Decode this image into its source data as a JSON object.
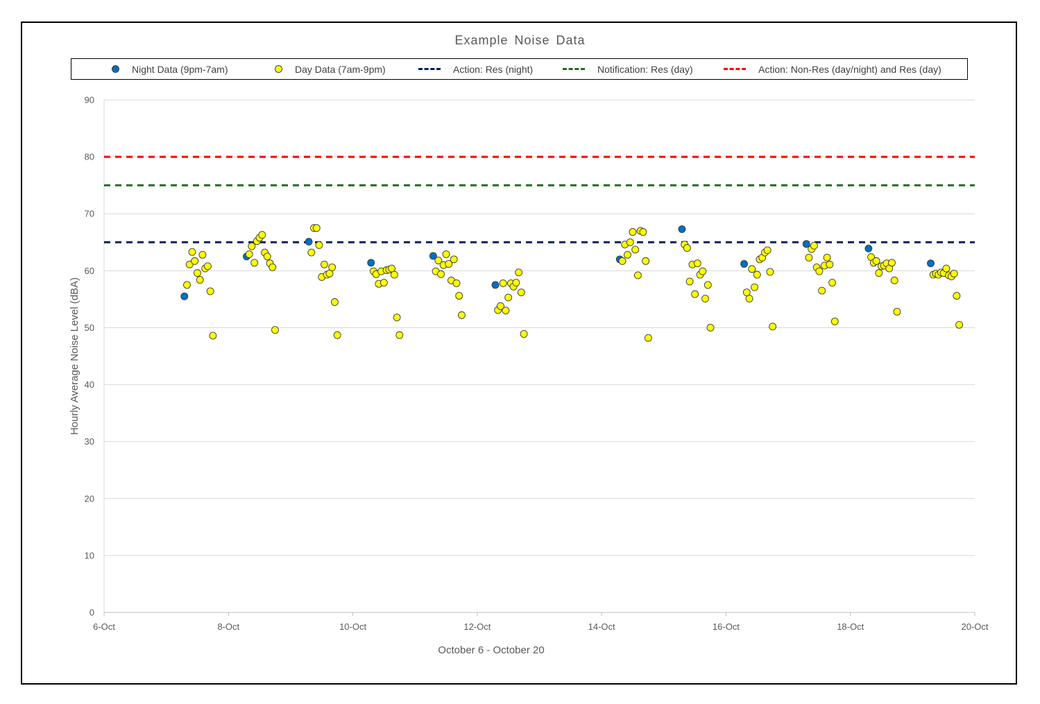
{
  "chart_data": {
    "type": "scatter",
    "title": "Example Noise Data",
    "xlabel": "October 6 - October 20",
    "ylabel": "Hourly Average Noise Level (dBA)",
    "xlim": [
      "6-Oct",
      "20-Oct"
    ],
    "ylim": [
      0,
      90
    ],
    "x_ticks": [
      "6-Oct",
      "8-Oct",
      "10-Oct",
      "12-Oct",
      "14-Oct",
      "16-Oct",
      "18-Oct",
      "20-Oct"
    ],
    "y_ticks": [
      0,
      10,
      20,
      30,
      40,
      50,
      60,
      70,
      80,
      90
    ],
    "grid": "horizontal",
    "legend_position": "top",
    "series": [
      {
        "name": "Night Data (9pm-7am)",
        "kind": "points",
        "color": "#0070C0",
        "points": [
          [
            "7-Oct 7:00",
            55.5
          ],
          [
            "8-Oct 7:00",
            62.5
          ],
          [
            "9-Oct 7:00",
            65.1
          ],
          [
            "10-Oct 7:00",
            61.4
          ],
          [
            "11-Oct 7:00",
            62.6
          ],
          [
            "12-Oct 7:00",
            57.5
          ],
          [
            "14-Oct 7:00",
            62.0
          ],
          [
            "15-Oct 7:00",
            67.3
          ],
          [
            "16-Oct 7:00",
            61.2
          ],
          [
            "17-Oct 7:00",
            64.7
          ],
          [
            "18-Oct 7:00",
            63.9
          ],
          [
            "19-Oct 7:00",
            61.3
          ]
        ]
      },
      {
        "name": "Day Data (7am-9pm)",
        "kind": "points",
        "color": "#FFFF00",
        "points": [
          [
            "7-Oct 8:00",
            57.5
          ],
          [
            "7-Oct 9:00",
            61.1
          ],
          [
            "7-Oct 10:00",
            63.3
          ],
          [
            "7-Oct 11:00",
            61.7
          ],
          [
            "7-Oct 12:00",
            59.6
          ],
          [
            "7-Oct 13:00",
            58.4
          ],
          [
            "7-Oct 14:00",
            62.8
          ],
          [
            "7-Oct 15:00",
            60.4
          ],
          [
            "7-Oct 16:00",
            60.8
          ],
          [
            "7-Oct 17:00",
            56.4
          ],
          [
            "7-Oct 18:00",
            48.6
          ],
          [
            "8-Oct 8:00",
            62.9
          ],
          [
            "8-Oct 9:00",
            64.3
          ],
          [
            "8-Oct 10:00",
            61.4
          ],
          [
            "8-Oct 11:00",
            65.2
          ],
          [
            "8-Oct 12:00",
            65.8
          ],
          [
            "8-Oct 13:00",
            66.3
          ],
          [
            "8-Oct 14:00",
            63.2
          ],
          [
            "8-Oct 15:00",
            62.5
          ],
          [
            "8-Oct 16:00",
            61.3
          ],
          [
            "8-Oct 17:00",
            60.6
          ],
          [
            "8-Oct 18:00",
            49.6
          ],
          [
            "9-Oct 8:00",
            63.2
          ],
          [
            "9-Oct 9:00",
            67.5
          ],
          [
            "9-Oct 10:00",
            67.5
          ],
          [
            "9-Oct 11:00",
            64.5
          ],
          [
            "9-Oct 12:00",
            58.9
          ],
          [
            "9-Oct 13:00",
            61.1
          ],
          [
            "9-Oct 14:00",
            59.3
          ],
          [
            "9-Oct 15:00",
            59.5
          ],
          [
            "9-Oct 16:00",
            60.6
          ],
          [
            "9-Oct 17:00",
            54.5
          ],
          [
            "9-Oct 18:00",
            48.7
          ],
          [
            "10-Oct 8:00",
            59.9
          ],
          [
            "10-Oct 9:00",
            59.4
          ],
          [
            "10-Oct 10:00",
            57.7
          ],
          [
            "10-Oct 11:00",
            59.9
          ],
          [
            "10-Oct 12:00",
            57.9
          ],
          [
            "10-Oct 13:00",
            60.1
          ],
          [
            "10-Oct 14:00",
            60.2
          ],
          [
            "10-Oct 15:00",
            60.4
          ],
          [
            "10-Oct 16:00",
            59.3
          ],
          [
            "10-Oct 17:00",
            51.8
          ],
          [
            "10-Oct 18:00",
            48.7
          ],
          [
            "11-Oct 8:00",
            59.9
          ],
          [
            "11-Oct 9:00",
            61.8
          ],
          [
            "11-Oct 10:00",
            59.4
          ],
          [
            "11-Oct 11:00",
            61.0
          ],
          [
            "11-Oct 12:00",
            62.9
          ],
          [
            "11-Oct 13:00",
            61.2
          ],
          [
            "11-Oct 14:00",
            58.3
          ],
          [
            "11-Oct 15:00",
            62.0
          ],
          [
            "11-Oct 16:00",
            57.8
          ],
          [
            "11-Oct 17:00",
            55.6
          ],
          [
            "11-Oct 18:00",
            52.2
          ],
          [
            "12-Oct 8:00",
            53.1
          ],
          [
            "12-Oct 9:00",
            53.8
          ],
          [
            "12-Oct 10:00",
            57.8
          ],
          [
            "12-Oct 11:00",
            53.0
          ],
          [
            "12-Oct 12:00",
            55.3
          ],
          [
            "12-Oct 13:00",
            57.8
          ],
          [
            "12-Oct 14:00",
            57.2
          ],
          [
            "12-Oct 15:00",
            57.9
          ],
          [
            "12-Oct 16:00",
            59.7
          ],
          [
            "12-Oct 17:00",
            56.2
          ],
          [
            "12-Oct 18:00",
            48.9
          ],
          [
            "14-Oct 8:00",
            61.7
          ],
          [
            "14-Oct 9:00",
            64.6
          ],
          [
            "14-Oct 10:00",
            62.8
          ],
          [
            "14-Oct 11:00",
            65.0
          ],
          [
            "14-Oct 12:00",
            66.8
          ],
          [
            "14-Oct 13:00",
            63.7
          ],
          [
            "14-Oct 14:00",
            59.2
          ],
          [
            "14-Oct 15:00",
            67.0
          ],
          [
            "14-Oct 16:00",
            66.8
          ],
          [
            "14-Oct 17:00",
            61.7
          ],
          [
            "14-Oct 18:00",
            48.2
          ],
          [
            "15-Oct 8:00",
            64.6
          ],
          [
            "15-Oct 9:00",
            64.0
          ],
          [
            "15-Oct 10:00",
            58.1
          ],
          [
            "15-Oct 11:00",
            61.1
          ],
          [
            "15-Oct 12:00",
            55.9
          ],
          [
            "15-Oct 13:00",
            61.3
          ],
          [
            "15-Oct 14:00",
            59.3
          ],
          [
            "15-Oct 15:00",
            59.9
          ],
          [
            "15-Oct 16:00",
            55.1
          ],
          [
            "15-Oct 17:00",
            57.5
          ],
          [
            "15-Oct 18:00",
            50.0
          ],
          [
            "16-Oct 8:00",
            56.2
          ],
          [
            "16-Oct 9:00",
            55.1
          ],
          [
            "16-Oct 10:00",
            60.3
          ],
          [
            "16-Oct 11:00",
            57.1
          ],
          [
            "16-Oct 12:00",
            59.3
          ],
          [
            "16-Oct 13:00",
            62.0
          ],
          [
            "16-Oct 14:00",
            62.3
          ],
          [
            "16-Oct 15:00",
            63.2
          ],
          [
            "16-Oct 16:00",
            63.6
          ],
          [
            "16-Oct 17:00",
            59.8
          ],
          [
            "16-Oct 18:00",
            50.2
          ],
          [
            "17-Oct 8:00",
            62.3
          ],
          [
            "17-Oct 9:00",
            63.8
          ],
          [
            "17-Oct 10:00",
            64.4
          ],
          [
            "17-Oct 11:00",
            60.6
          ],
          [
            "17-Oct 12:00",
            59.9
          ],
          [
            "17-Oct 13:00",
            56.5
          ],
          [
            "17-Oct 14:00",
            60.9
          ],
          [
            "17-Oct 15:00",
            62.3
          ],
          [
            "17-Oct 16:00",
            61.1
          ],
          [
            "17-Oct 17:00",
            57.9
          ],
          [
            "17-Oct 18:00",
            51.1
          ],
          [
            "18-Oct 8:00",
            62.4
          ],
          [
            "18-Oct 9:00",
            61.4
          ],
          [
            "18-Oct 10:00",
            61.7
          ],
          [
            "18-Oct 11:00",
            59.6
          ],
          [
            "18-Oct 12:00",
            60.8
          ],
          [
            "18-Oct 13:00",
            60.9
          ],
          [
            "18-Oct 14:00",
            61.3
          ],
          [
            "18-Oct 15:00",
            60.4
          ],
          [
            "18-Oct 16:00",
            61.4
          ],
          [
            "18-Oct 17:00",
            58.3
          ],
          [
            "18-Oct 18:00",
            52.8
          ],
          [
            "19-Oct 8:00",
            59.3
          ],
          [
            "19-Oct 9:00",
            59.5
          ],
          [
            "19-Oct 10:00",
            59.3
          ],
          [
            "19-Oct 11:00",
            59.7
          ],
          [
            "19-Oct 12:00",
            59.6
          ],
          [
            "19-Oct 13:00",
            60.4
          ],
          [
            "19-Oct 14:00",
            59.2
          ],
          [
            "19-Oct 15:00",
            59.0
          ],
          [
            "19-Oct 16:00",
            59.5
          ],
          [
            "19-Oct 17:00",
            55.6
          ],
          [
            "19-Oct 18:00",
            50.5
          ]
        ]
      },
      {
        "name": "Action: Res (night)",
        "kind": "threshold",
        "color": "#002060",
        "value": 65
      },
      {
        "name": "Notification: Res (day)",
        "kind": "threshold",
        "color": "#1E6B1E",
        "value": 75
      },
      {
        "name": "Action: Non-Res (day/night) and Res (day)",
        "kind": "threshold",
        "color": "#FF0000",
        "value": 80
      }
    ]
  }
}
